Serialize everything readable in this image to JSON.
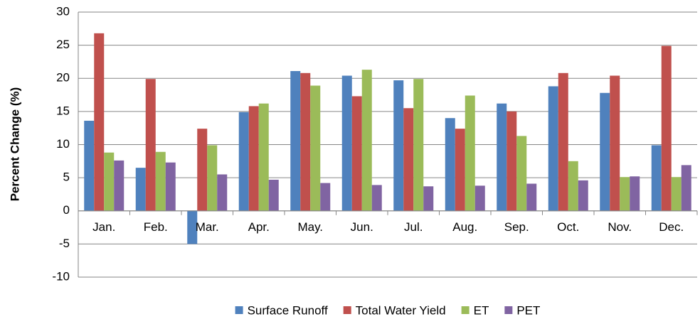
{
  "chart_data": {
    "type": "bar",
    "y_label": "Percent Change (%)",
    "categories": [
      "Jan.",
      "Feb.",
      "Mar.",
      "Apr.",
      "May.",
      "Jun.",
      "Jul.",
      "Aug.",
      "Sep.",
      "Oct.",
      "Nov.",
      "Dec."
    ],
    "series": [
      {
        "name": "Surface Runoff",
        "color": "#4f81bd",
        "values": [
          13.6,
          6.5,
          -5.0,
          14.9,
          21.1,
          20.4,
          19.7,
          14.0,
          16.2,
          18.8,
          17.8,
          9.9
        ]
      },
      {
        "name": "Total Water Yield",
        "color": "#c0504d",
        "values": [
          26.8,
          19.9,
          12.4,
          15.8,
          20.8,
          17.3,
          15.5,
          12.4,
          15.0,
          20.8,
          20.4,
          24.9
        ]
      },
      {
        "name": "ET",
        "color": "#9bbb59",
        "values": [
          8.8,
          8.9,
          9.9,
          16.2,
          18.9,
          21.3,
          19.9,
          17.4,
          11.3,
          7.5,
          5.1,
          5.1
        ]
      },
      {
        "name": "PET",
        "color": "#8064a2",
        "values": [
          7.6,
          7.3,
          5.5,
          4.7,
          4.2,
          3.9,
          3.7,
          3.8,
          4.1,
          4.6,
          5.2,
          6.9
        ]
      }
    ],
    "ylim": [
      -10,
      30
    ],
    "yticks": [
      -10,
      -5,
      0,
      5,
      10,
      15,
      20,
      25,
      30
    ],
    "grid": true,
    "legend": "bottom"
  }
}
